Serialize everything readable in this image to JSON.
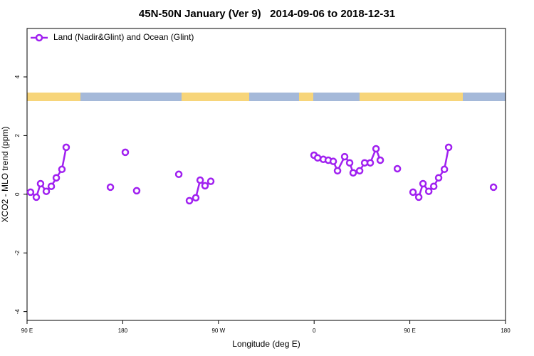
{
  "chart_data": {
    "type": "line",
    "title": "45N-50N January (Ver 9)   2014-09-06 to 2018-12-31",
    "x_label": "Longitude (deg E)",
    "y_label": "XCO2 - MLO trend (ppm)",
    "xlim": [
      90,
      540
    ],
    "ylim": [
      -4.3,
      5.65
    ],
    "xticks": [
      {
        "value": 90,
        "label": "90 E"
      },
      180,
      {
        "value": 270,
        "label": "90 W"
      },
      {
        "value": 360,
        "label": "0"
      },
      {
        "value": 450,
        "label": "90 E"
      },
      {
        "value": 540,
        "label": "180"
      }
    ],
    "yticks": [
      -4,
      -2,
      0,
      2,
      4
    ],
    "legend": "top-left",
    "series": [
      {
        "name": "Land (Nadir&Glint) and Ocean (Glint)",
        "color": "#a020f0",
        "x": [
          93.3,
          98.7,
          102.7,
          108.1,
          112.8,
          117.5,
          122.8,
          126.8,
          null,
          168.4,
          null,
          182.4,
          null,
          193.1,
          null,
          232.7,
          null,
          242.7,
          248.7,
          252.8,
          257.4,
          262.8,
          null,
          359.9,
          363.3,
          368.6,
          373.3,
          378.0,
          382.0,
          388.7,
          393.4,
          396.7,
          402.8,
          407.5,
          412.8,
          418.2,
          422.2,
          null,
          438.3,
          null,
          453.0,
          458.4,
          462.4,
          467.8,
          472.5,
          477.1,
          482.5,
          486.5,
          null,
          528.7
        ],
        "values": [
          0.07,
          -0.1,
          0.36,
          0.1,
          0.27,
          0.56,
          0.85,
          1.6,
          null,
          0.24,
          null,
          1.43,
          null,
          0.12,
          null,
          0.68,
          null,
          -0.22,
          -0.12,
          0.48,
          0.29,
          0.44,
          null,
          1.33,
          1.24,
          1.19,
          1.16,
          1.12,
          0.8,
          1.28,
          1.07,
          0.73,
          0.8,
          1.07,
          1.07,
          1.55,
          1.16,
          null,
          0.87,
          null,
          0.07,
          -0.1,
          0.36,
          0.1,
          0.27,
          0.56,
          0.85,
          1.6,
          null,
          0.24
        ]
      }
    ]
  }
}
